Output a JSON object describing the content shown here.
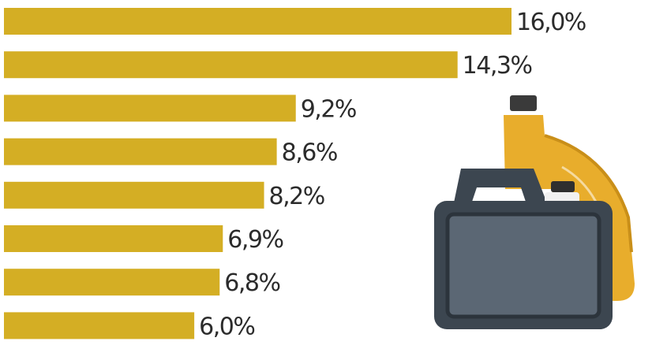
{
  "chart_data": {
    "type": "bar",
    "orientation": "horizontal",
    "categories": [
      "",
      "",
      "",
      "",
      "",
      "",
      "",
      ""
    ],
    "values": [
      16.0,
      14.3,
      9.2,
      8.6,
      8.2,
      6.9,
      6.8,
      6.0
    ],
    "value_labels": [
      "16,0%",
      "14,3%",
      "9,2%",
      "8,6%",
      "8,2%",
      "6,9%",
      "6,8%",
      "6,0%"
    ],
    "title": "",
    "xlabel": "",
    "ylabel": "",
    "xlim": [
      0,
      16.0
    ],
    "grid": false,
    "legend": "none"
  },
  "colors": {
    "bar": "#d4ae24",
    "label": "#2b2b2b",
    "canister_yellow": "#e8ad2c",
    "canister_dark": "#3c4650"
  },
  "icons": [
    "oil-canister-icon",
    "oil-bottle-icon"
  ]
}
